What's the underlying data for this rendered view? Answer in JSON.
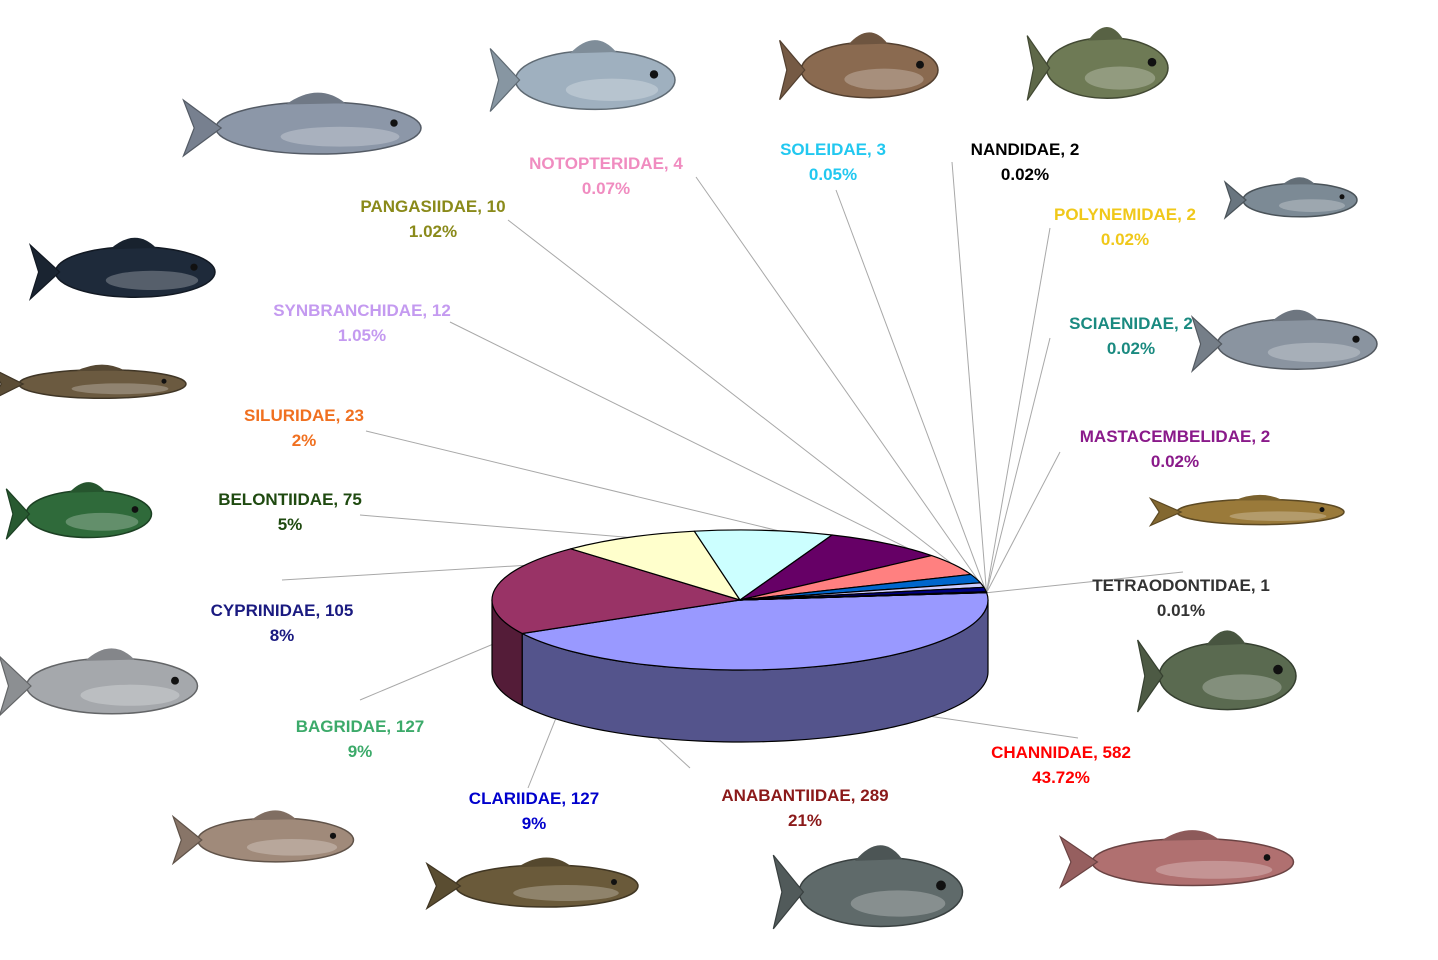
{
  "chart_data": {
    "type": "pie",
    "title": "",
    "slices": [
      {
        "name": "CHANNIDAE",
        "count": "582",
        "percent": "43.72%",
        "value": 43.72,
        "color": "#9999FF",
        "label_color": "#FF0000"
      },
      {
        "name": "ANABANTIIDAE",
        "count": "289",
        "percent": "21%",
        "value": 21,
        "color": "#993366",
        "label_color": "#8B1A1A"
      },
      {
        "name": "CLARIIDAE",
        "count": "127",
        "percent": "9%",
        "value": 9,
        "color": "#FFFFCC",
        "label_color": "#0000CC"
      },
      {
        "name": "BAGRIDAE",
        "count": "127",
        "percent": "9%",
        "value": 9,
        "color": "#CCFFFF",
        "label_color": "#3CAA6A"
      },
      {
        "name": "CYPRINIDAE",
        "count": "105",
        "percent": "8%",
        "value": 8,
        "color": "#660066",
        "label_color": "#1A1A80"
      },
      {
        "name": "BELONTIIDAE",
        "count": "75",
        "percent": "5%",
        "value": 5,
        "color": "#FF8080",
        "label_color": "#1F4A10"
      },
      {
        "name": "SILURIDAE",
        "count": "23",
        "percent": "2%",
        "value": 2,
        "color": "#0066CC",
        "label_color": "#F07020"
      },
      {
        "name": "SYNBRANCHIDAE",
        "count": "12",
        "percent": "1.05%",
        "value": 1.05,
        "color": "#CCCCFF",
        "label_color": "#C49AF0"
      },
      {
        "name": "PANGASIIDAE",
        "count": "10",
        "percent": "1.02%",
        "value": 1.02,
        "color": "#000080",
        "label_color": "#8A8A1A"
      },
      {
        "name": "NOTOPTERIDAE",
        "count": "4",
        "percent": "0.07%",
        "value": 0.07,
        "color": "#FF00FF",
        "label_color": "#F08CC0"
      },
      {
        "name": "SOLEIDAE",
        "count": "3",
        "percent": "0.05%",
        "value": 0.05,
        "color": "#FFFF00",
        "label_color": "#22C8F0"
      },
      {
        "name": "NANDIDAE",
        "count": "2",
        "percent": "0.02%",
        "value": 0.02,
        "color": "#00FFFF",
        "label_color": "#000000"
      },
      {
        "name": "POLYNEMIDAE",
        "count": "2",
        "percent": "0.02%",
        "value": 0.02,
        "color": "#800080",
        "label_color": "#F0C81A"
      },
      {
        "name": "SCIAENIDAE",
        "count": "2",
        "percent": "0.02%",
        "value": 0.02,
        "color": "#800000",
        "label_color": "#1A8A80"
      },
      {
        "name": "MASTACEMBELIDAE",
        "count": "2",
        "percent": "0.02%",
        "value": 0.02,
        "color": "#008080",
        "label_color": "#8A1A8A"
      },
      {
        "name": "TETRAODONTIDAE",
        "count": "1",
        "percent": "0.01%",
        "value": 0.01,
        "color": "#0000FF",
        "label_color": "#333333"
      }
    ]
  }
}
